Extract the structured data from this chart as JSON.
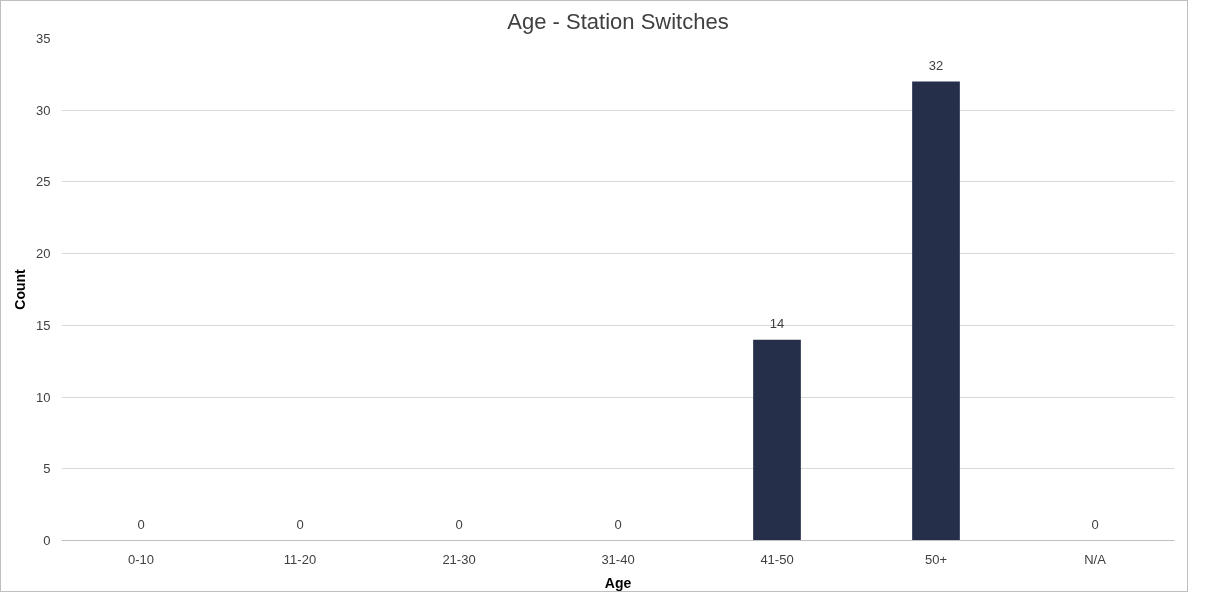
{
  "chart_data": {
    "type": "bar",
    "title": "Age - Station Switches",
    "xlabel": "Age",
    "ylabel": "Count",
    "categories": [
      "0-10",
      "11-20",
      "21-30",
      "31-40",
      "41-50",
      "50+",
      "N/A"
    ],
    "values": [
      0,
      0,
      0,
      0,
      14,
      32,
      0
    ],
    "color": "#252f4a",
    "ylim": [
      0,
      35
    ],
    "yticks": [
      0,
      5,
      10,
      15,
      20,
      25,
      30,
      35
    ],
    "grid": "y",
    "data_labels": true
  }
}
